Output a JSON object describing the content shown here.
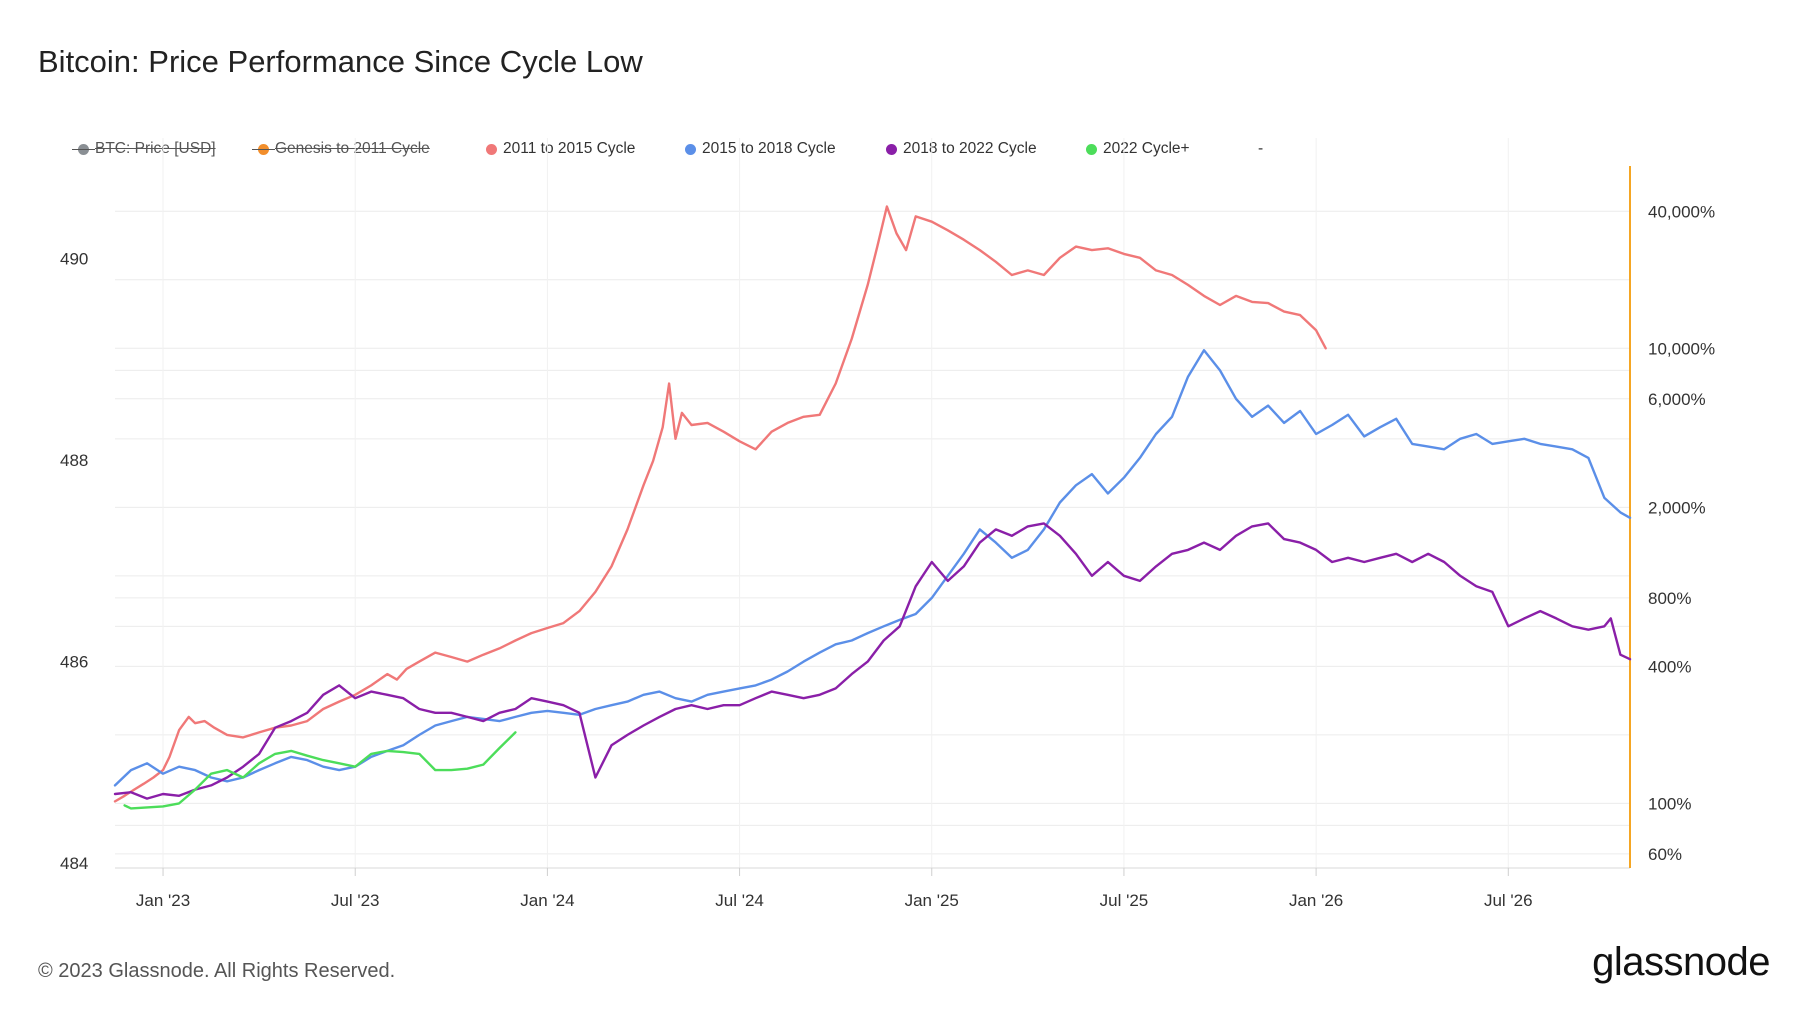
{
  "header": {
    "title": "Bitcoin: Price Performance Since Cycle Low"
  },
  "legend": [
    {
      "label": "BTC: Price [USD]",
      "color": "#8a8f94",
      "hidden": true
    },
    {
      "label": "Genesis to 2011 Cycle",
      "color": "#f28e2b",
      "hidden": true
    },
    {
      "label": "2011 to 2015 Cycle",
      "color": "#f07878",
      "hidden": false
    },
    {
      "label": "2015 to 2018 Cycle",
      "color": "#5b8fe8",
      "hidden": false
    },
    {
      "label": "2018 to 2022 Cycle",
      "color": "#8a1fa8",
      "hidden": false
    },
    {
      "label": "2022 Cycle+",
      "color": "#4cdd5a",
      "hidden": false
    },
    {
      "label": "-",
      "color": "",
      "hidden": false
    }
  ],
  "footer": {
    "copyright": "© 2023 Glassnode. All Rights Reserved.",
    "brand": "glassnode"
  },
  "chart_data": {
    "type": "line",
    "x_ticks": [
      "Jan '23",
      "Jul '23",
      "Jan '24",
      "Jul '24",
      "Jan '25",
      "Jul '25",
      "Jan '26",
      "Jul '26"
    ],
    "x_tick_months": [
      0,
      6,
      12,
      18,
      24,
      30,
      36,
      42
    ],
    "x_range": [
      -1.5,
      45.8
    ],
    "left_axis": {
      "ticks": [
        "484",
        "486",
        "488",
        "490"
      ],
      "values": [
        484,
        486,
        488,
        490
      ],
      "range": [
        483.95,
        490.9
      ]
    },
    "right_axis": {
      "scale": "log",
      "ticks": [
        "60%",
        "100%",
        "400%",
        "800%",
        "2,000%",
        "6,000%",
        "10,000%",
        "40,000%"
      ],
      "values": [
        60,
        100,
        400,
        800,
        2000,
        6000,
        10000,
        40000
      ],
      "range": [
        52,
        62000
      ]
    },
    "grid": true,
    "legend_position": "top",
    "series": [
      {
        "name": "2011 to 2015 Cycle",
        "color": "#f07878",
        "x": [
          -1.5,
          -1.2,
          -0.9,
          -0.6,
          -0.3,
          0,
          0.2,
          0.5,
          0.8,
          1,
          1.3,
          1.6,
          2,
          2.5,
          3,
          3.5,
          4,
          4.5,
          5,
          5.5,
          6,
          6.5,
          7,
          7.3,
          7.6,
          8,
          8.5,
          9,
          9.5,
          10,
          10.5,
          11,
          11.5,
          12,
          12.5,
          13,
          13.5,
          14,
          14.5,
          15,
          15.3,
          15.6,
          15.8,
          16,
          16.2,
          16.5,
          17,
          17.5,
          18,
          18.5,
          19,
          19.5,
          20,
          20.5,
          21,
          21.5,
          22,
          22.3,
          22.6,
          22.9,
          23.2,
          23.5,
          24,
          24.5,
          25,
          25.5,
          26,
          26.5,
          27,
          27.5,
          28,
          28.5,
          29,
          29.5,
          30,
          30.5,
          31,
          31.5,
          32,
          32.5,
          33,
          33.5,
          34,
          34.5,
          35,
          35.5,
          36,
          36.3
        ],
        "y": [
          102,
          108,
          115,
          122,
          130,
          140,
          160,
          210,
          240,
          225,
          230,
          215,
          200,
          195,
          205,
          215,
          220,
          230,
          260,
          280,
          300,
          330,
          370,
          350,
          390,
          420,
          460,
          440,
          420,
          450,
          480,
          520,
          560,
          590,
          620,
          700,
          850,
          1100,
          1600,
          2500,
          3200,
          4500,
          7000,
          4000,
          5200,
          4600,
          4700,
          4300,
          3900,
          3600,
          4300,
          4700,
          5000,
          5100,
          7000,
          11000,
          19000,
          28000,
          42000,
          32000,
          27000,
          38000,
          36000,
          33000,
          30000,
          27000,
          24000,
          21000,
          22000,
          21000,
          25000,
          28000,
          27000,
          27500,
          26000,
          25000,
          22000,
          21000,
          19000,
          17000,
          15500,
          17000,
          16000,
          15800,
          14500,
          14000,
          12000,
          10000
        ]
      },
      {
        "name": "2015 to 2018 Cycle",
        "color": "#5b8fe8",
        "x": [
          -1.5,
          -1,
          -0.5,
          0,
          0.5,
          1,
          1.5,
          2,
          2.5,
          3,
          3.5,
          4,
          4.5,
          5,
          5.5,
          6,
          6.5,
          7,
          7.5,
          8,
          8.5,
          9,
          9.5,
          10,
          10.5,
          11,
          11.5,
          12,
          12.5,
          13,
          13.5,
          14,
          14.5,
          15,
          15.5,
          16,
          16.5,
          17,
          17.5,
          18,
          18.5,
          19,
          19.5,
          20,
          20.5,
          21,
          21.5,
          22,
          22.5,
          23,
          23.5,
          24,
          24.5,
          25,
          25.5,
          26,
          26.5,
          27,
          27.5,
          28,
          28.5,
          29,
          29.5,
          30,
          30.5,
          31,
          31.5,
          32,
          32.5,
          33,
          33.5,
          34,
          34.5,
          35,
          35.5,
          36,
          36.5,
          37,
          37.5,
          38,
          38.5,
          39,
          39.5,
          40,
          40.5,
          41,
          41.5,
          42,
          42.5,
          43,
          43.5,
          44,
          44.5,
          45,
          45.5,
          45.8
        ],
        "y": [
          120,
          140,
          150,
          135,
          145,
          140,
          130,
          125,
          130,
          140,
          150,
          160,
          155,
          145,
          140,
          145,
          160,
          170,
          180,
          200,
          220,
          230,
          240,
          235,
          230,
          240,
          250,
          255,
          250,
          245,
          260,
          270,
          280,
          300,
          310,
          290,
          280,
          300,
          310,
          320,
          330,
          350,
          380,
          420,
          460,
          500,
          520,
          560,
          600,
          640,
          680,
          800,
          1000,
          1250,
          1600,
          1400,
          1200,
          1300,
          1600,
          2100,
          2500,
          2800,
          2300,
          2700,
          3300,
          4200,
          5000,
          7500,
          9800,
          8000,
          6000,
          5000,
          5600,
          4700,
          5300,
          4200,
          4600,
          5100,
          4100,
          4500,
          4900,
          3800,
          3700,
          3600,
          4000,
          4200,
          3800,
          3900,
          4000,
          3800,
          3700,
          3600,
          3300,
          2200,
          1900,
          1800
        ]
      },
      {
        "name": "2018 to 2022 Cycle",
        "color": "#8a1fa8",
        "x": [
          -1.5,
          -1,
          -0.5,
          0,
          0.5,
          1,
          1.5,
          2,
          2.5,
          3,
          3.5,
          4,
          4.5,
          5,
          5.5,
          6,
          6.5,
          7,
          7.5,
          8,
          8.5,
          9,
          9.5,
          10,
          10.5,
          11,
          11.5,
          12,
          12.5,
          13,
          13.5,
          14,
          14.5,
          15,
          15.5,
          16,
          16.5,
          17,
          17.5,
          18,
          18.5,
          19,
          19.5,
          20,
          20.5,
          21,
          21.5,
          22,
          22.5,
          23,
          23.5,
          24,
          24.5,
          25,
          25.5,
          26,
          26.5,
          27,
          27.5,
          28,
          28.5,
          29,
          29.5,
          30,
          30.5,
          31,
          31.5,
          32,
          32.5,
          33,
          33.5,
          34,
          34.5,
          35,
          35.5,
          36,
          36.5,
          37,
          37.5,
          38,
          38.5,
          39,
          39.5,
          40,
          40.5,
          41,
          41.5,
          42,
          42.5,
          43,
          43.5,
          44,
          44.5,
          45,
          45.2,
          45.5,
          45.8
        ],
        "y": [
          110,
          112,
          105,
          110,
          108,
          115,
          120,
          130,
          145,
          165,
          215,
          230,
          250,
          300,
          330,
          290,
          310,
          300,
          290,
          260,
          250,
          250,
          240,
          230,
          250,
          260,
          290,
          280,
          270,
          250,
          130,
          180,
          200,
          220,
          240,
          260,
          270,
          260,
          270,
          270,
          290,
          310,
          300,
          290,
          300,
          320,
          370,
          420,
          520,
          600,
          900,
          1150,
          950,
          1100,
          1400,
          1600,
          1500,
          1650,
          1700,
          1500,
          1250,
          1000,
          1150,
          1000,
          950,
          1100,
          1250,
          1300,
          1400,
          1300,
          1500,
          1650,
          1700,
          1450,
          1400,
          1300,
          1150,
          1200,
          1150,
          1200,
          1250,
          1150,
          1250,
          1150,
          1000,
          900,
          850,
          600,
          650,
          700,
          650,
          600,
          580,
          600,
          650,
          450,
          430
        ]
      },
      {
        "name": "2022 Cycle+",
        "color": "#4cdd5a",
        "x": [
          -1.2,
          -1,
          -0.5,
          0,
          0.5,
          1,
          1.5,
          2,
          2.5,
          3,
          3.5,
          4,
          4.5,
          5,
          5.5,
          6,
          6.5,
          7,
          7.5,
          8,
          8.5,
          9,
          9.5,
          10,
          10.5,
          11
        ],
        "y": [
          98,
          95,
          96,
          97,
          100,
          115,
          135,
          140,
          130,
          150,
          165,
          170,
          162,
          155,
          150,
          145,
          165,
          170,
          168,
          165,
          140,
          140,
          142,
          148,
          175,
          205
        ]
      }
    ]
  }
}
